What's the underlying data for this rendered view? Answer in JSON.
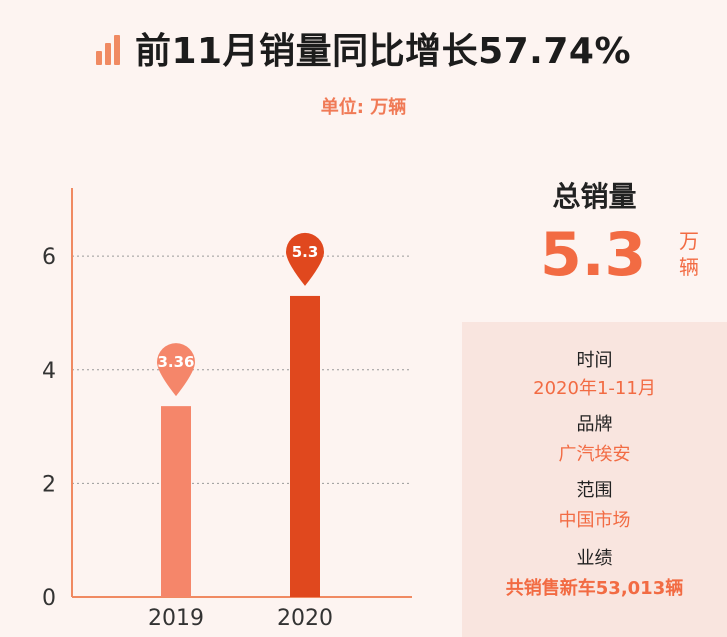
{
  "header": {
    "title": "前11月销量同比增长57.74%",
    "unit_label": "单位: 万辆"
  },
  "chart_data": {
    "type": "bar",
    "categories": [
      "2019",
      "2020"
    ],
    "values": [
      3.36,
      5.3
    ],
    "value_labels": [
      "3.36",
      "5.3"
    ],
    "colors": [
      "#f5866a",
      "#e0481e"
    ],
    "ylim": [
      0,
      7.2
    ],
    "yticks": [
      0,
      2,
      4,
      6
    ],
    "grid": true,
    "legend": "none"
  },
  "summary": {
    "total_title": "总销量",
    "total_value": "5.3",
    "total_unit": "万辆"
  },
  "info": {
    "time_label": "时间",
    "time_value": "2020年1-11月",
    "brand_label": "品牌",
    "brand_value": "广汽埃安",
    "scope_label": "范围",
    "scope_value": "中国市场",
    "perf_label": "业绩",
    "perf_value": "共销售新车53,013辆"
  },
  "colors": {
    "accent": "#f26b43",
    "background": "#fdf4f1",
    "panel": "#f9e5df"
  }
}
